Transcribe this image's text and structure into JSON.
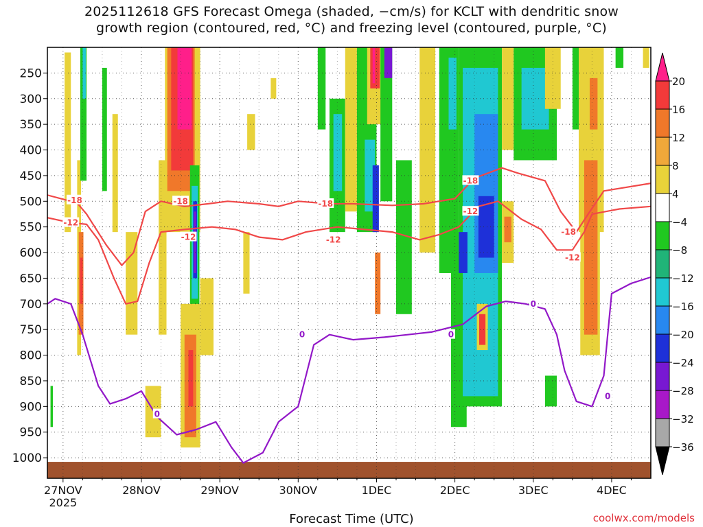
{
  "chart_data": {
    "type": "heatmap",
    "title": "2025112618 GFS Forecast Omega (shaded, −cm/s) for KCLT with dendritic snow growth region (contoured, red, °C) and freezing level (contoured, purple, °C)",
    "title_line1": "2025112618 GFS Forecast Omega (shaded, −cm/s) for KCLT with dendritic snow",
    "title_line2": "growth region (contoured, red, °C) and freezing level (contoured, purple, °C)",
    "xlabel": "Forecast Time (UTC)",
    "ylabel": "",
    "credit": "coolwx.com/models",
    "x_range_days": [
      -0.2,
      7.5
    ],
    "x_ticks": [
      {
        "day": 0,
        "label": "27NOV",
        "sub": "2025"
      },
      {
        "day": 1,
        "label": "28NOV",
        "sub": ""
      },
      {
        "day": 2,
        "label": "29NOV",
        "sub": ""
      },
      {
        "day": 3,
        "label": "30NOV",
        "sub": ""
      },
      {
        "day": 4,
        "label": "1DEC",
        "sub": ""
      },
      {
        "day": 5,
        "label": "2DEC",
        "sub": ""
      },
      {
        "day": 6,
        "label": "3DEC",
        "sub": ""
      },
      {
        "day": 7,
        "label": "4DEC",
        "sub": ""
      }
    ],
    "y_range_hpa": [
      1040,
      200
    ],
    "y_ticks": [
      250,
      300,
      350,
      400,
      450,
      500,
      550,
      600,
      650,
      700,
      750,
      800,
      850,
      900,
      950,
      1000
    ],
    "colorbar": {
      "labels": [
        "20",
        "16",
        "12",
        "8",
        "4",
        "−4",
        "−8",
        "−12",
        "−16",
        "−20",
        "−24",
        "−28",
        "−32",
        "−36"
      ],
      "colors": [
        "#ff1f8a",
        "#f23a3a",
        "#f0782a",
        "#f0a83a",
        "#e8d23a",
        "#ffffff",
        "#20c820",
        "#20b478",
        "#20c8d2",
        "#2888f0",
        "#1e30d8",
        "#7818d2",
        "#a818c8",
        "#a8a8a8",
        "#000000"
      ]
    },
    "omega_blobs": [
      {
        "x0": 0.02,
        "x1": 0.1,
        "p0": 210,
        "p1": 560,
        "cat": "yellow"
      },
      {
        "x0": 0.18,
        "x1": 0.23,
        "p0": 420,
        "p1": 800,
        "cat": "yellow"
      },
      {
        "x0": 0.2,
        "x1": 0.26,
        "p0": 560,
        "p1": 760,
        "cat": "orange"
      },
      {
        "x0": 0.22,
        "x1": 0.25,
        "p0": 610,
        "p1": 700,
        "cat": "red"
      },
      {
        "x0": -0.16,
        "x1": -0.13,
        "p0": 860,
        "p1": 940,
        "cat": "green"
      },
      {
        "x0": 0.22,
        "x1": 0.3,
        "p0": 200,
        "p1": 460,
        "cat": "green"
      },
      {
        "x0": 0.25,
        "x1": 0.29,
        "p0": 200,
        "p1": 300,
        "cat": "cyan"
      },
      {
        "x0": 0.5,
        "x1": 0.56,
        "p0": 240,
        "p1": 480,
        "cat": "green"
      },
      {
        "x0": 0.63,
        "x1": 0.7,
        "p0": 330,
        "p1": 560,
        "cat": "yellow"
      },
      {
        "x0": 0.8,
        "x1": 0.95,
        "p0": 560,
        "p1": 760,
        "cat": "yellow"
      },
      {
        "x0": 1.05,
        "x1": 1.25,
        "p0": 860,
        "p1": 960,
        "cat": "yellow"
      },
      {
        "x0": 1.22,
        "x1": 1.32,
        "p0": 420,
        "p1": 760,
        "cat": "yellow"
      },
      {
        "x0": 1.3,
        "x1": 1.75,
        "p0": 200,
        "p1": 560,
        "cat": "yellow"
      },
      {
        "x0": 1.33,
        "x1": 1.68,
        "p0": 200,
        "p1": 480,
        "cat": "orange"
      },
      {
        "x0": 1.38,
        "x1": 1.66,
        "p0": 200,
        "p1": 440,
        "cat": "red"
      },
      {
        "x0": 1.46,
        "x1": 1.64,
        "p0": 200,
        "p1": 360,
        "cat": "magenta"
      },
      {
        "x0": 1.62,
        "x1": 1.74,
        "p0": 430,
        "p1": 720,
        "cat": "green"
      },
      {
        "x0": 1.64,
        "x1": 1.72,
        "p0": 470,
        "p1": 690,
        "cat": "cyan"
      },
      {
        "x0": 1.66,
        "x1": 1.71,
        "p0": 500,
        "p1": 650,
        "cat": "blue"
      },
      {
        "x0": 1.67,
        "x1": 1.7,
        "p0": 520,
        "p1": 640,
        "cat": "purple"
      },
      {
        "x0": 1.5,
        "x1": 1.75,
        "p0": 700,
        "p1": 980,
        "cat": "yellow"
      },
      {
        "x0": 1.55,
        "x1": 1.7,
        "p0": 760,
        "p1": 960,
        "cat": "orange"
      },
      {
        "x0": 1.6,
        "x1": 1.66,
        "p0": 790,
        "p1": 900,
        "cat": "red"
      },
      {
        "x0": 1.75,
        "x1": 1.92,
        "p0": 650,
        "p1": 800,
        "cat": "yellow"
      },
      {
        "x0": 2.35,
        "x1": 2.45,
        "p0": 330,
        "p1": 400,
        "cat": "yellow"
      },
      {
        "x0": 2.3,
        "x1": 2.38,
        "p0": 560,
        "p1": 680,
        "cat": "yellow"
      },
      {
        "x0": 2.65,
        "x1": 2.72,
        "p0": 260,
        "p1": 300,
        "cat": "yellow"
      },
      {
        "x0": 3.25,
        "x1": 3.35,
        "p0": 200,
        "p1": 360,
        "cat": "green"
      },
      {
        "x0": 3.4,
        "x1": 3.6,
        "p0": 300,
        "p1": 560,
        "cat": "green"
      },
      {
        "x0": 3.45,
        "x1": 3.56,
        "p0": 330,
        "p1": 480,
        "cat": "cyan"
      },
      {
        "x0": 3.6,
        "x1": 3.75,
        "p0": 200,
        "p1": 520,
        "cat": "yellow"
      },
      {
        "x0": 3.75,
        "x1": 4.0,
        "p0": 200,
        "p1": 560,
        "cat": "green"
      },
      {
        "x0": 3.85,
        "x1": 3.98,
        "p0": 380,
        "p1": 520,
        "cat": "cyan"
      },
      {
        "x0": 3.88,
        "x1": 4.06,
        "p0": 200,
        "p1": 350,
        "cat": "yellow"
      },
      {
        "x0": 3.92,
        "x1": 4.04,
        "p0": 200,
        "p1": 280,
        "cat": "red"
      },
      {
        "x0": 3.95,
        "x1": 3.98,
        "p0": 200,
        "p1": 270,
        "cat": "magenta"
      },
      {
        "x0": 3.95,
        "x1": 4.03,
        "p0": 430,
        "p1": 560,
        "cat": "blue"
      },
      {
        "x0": 4.05,
        "x1": 4.2,
        "p0": 200,
        "p1": 500,
        "cat": "green"
      },
      {
        "x0": 4.1,
        "x1": 4.2,
        "p0": 200,
        "p1": 260,
        "cat": "purple"
      },
      {
        "x0": 3.98,
        "x1": 4.05,
        "p0": 600,
        "p1": 720,
        "cat": "orange"
      },
      {
        "x0": 4.25,
        "x1": 4.45,
        "p0": 420,
        "p1": 720,
        "cat": "green"
      },
      {
        "x0": 4.55,
        "x1": 4.75,
        "p0": 200,
        "p1": 600,
        "cat": "yellow"
      },
      {
        "x0": 4.8,
        "x1": 5.05,
        "p0": 200,
        "p1": 640,
        "cat": "green"
      },
      {
        "x0": 4.92,
        "x1": 5.02,
        "p0": 220,
        "p1": 360,
        "cat": "cyan"
      },
      {
        "x0": 4.95,
        "x1": 5.15,
        "p0": 600,
        "p1": 940,
        "cat": "green"
      },
      {
        "x0": 5.05,
        "x1": 5.6,
        "p0": 200,
        "p1": 900,
        "cat": "green"
      },
      {
        "x0": 5.1,
        "x1": 5.55,
        "p0": 240,
        "p1": 880,
        "cat": "cyan"
      },
      {
        "x0": 5.25,
        "x1": 5.55,
        "p0": 330,
        "p1": 640,
        "cat": "sky"
      },
      {
        "x0": 5.3,
        "x1": 5.5,
        "p0": 490,
        "p1": 610,
        "cat": "blue"
      },
      {
        "x0": 5.05,
        "x1": 5.16,
        "p0": 560,
        "p1": 640,
        "cat": "blue"
      },
      {
        "x0": 5.28,
        "x1": 5.42,
        "p0": 700,
        "p1": 790,
        "cat": "yellow"
      },
      {
        "x0": 5.31,
        "x1": 5.39,
        "p0": 720,
        "p1": 780,
        "cat": "red"
      },
      {
        "x0": 5.6,
        "x1": 5.75,
        "p0": 200,
        "p1": 400,
        "cat": "yellow"
      },
      {
        "x0": 5.6,
        "x1": 5.75,
        "p0": 500,
        "p1": 620,
        "cat": "yellow"
      },
      {
        "x0": 5.63,
        "x1": 5.72,
        "p0": 530,
        "p1": 580,
        "cat": "orange"
      },
      {
        "x0": 5.75,
        "x1": 6.3,
        "p0": 200,
        "p1": 420,
        "cat": "green"
      },
      {
        "x0": 5.85,
        "x1": 6.2,
        "p0": 240,
        "p1": 360,
        "cat": "cyan"
      },
      {
        "x0": 6.15,
        "x1": 6.35,
        "p0": 200,
        "p1": 320,
        "cat": "yellow"
      },
      {
        "x0": 6.15,
        "x1": 6.3,
        "p0": 840,
        "p1": 900,
        "cat": "green"
      },
      {
        "x0": 6.5,
        "x1": 6.66,
        "p0": 200,
        "p1": 360,
        "cat": "green"
      },
      {
        "x0": 6.58,
        "x1": 6.9,
        "p0": 200,
        "p1": 560,
        "cat": "yellow"
      },
      {
        "x0": 6.6,
        "x1": 6.85,
        "p0": 400,
        "p1": 800,
        "cat": "yellow"
      },
      {
        "x0": 6.65,
        "x1": 6.82,
        "p0": 420,
        "p1": 760,
        "cat": "orange"
      },
      {
        "x0": 6.72,
        "x1": 6.82,
        "p0": 260,
        "p1": 360,
        "cat": "orange"
      },
      {
        "x0": 7.05,
        "x1": 7.15,
        "p0": 200,
        "p1": 240,
        "cat": "green"
      },
      {
        "x0": 7.4,
        "x1": 7.48,
        "p0": 200,
        "p1": 240,
        "cat": "yellow"
      }
    ],
    "contours": [
      {
        "name": "-18",
        "color": "#f04848",
        "points": [
          [
            -0.2,
            488
          ],
          [
            0.05,
            498
          ],
          [
            0.15,
            498
          ],
          [
            0.3,
            525
          ],
          [
            0.55,
            585
          ],
          [
            0.75,
            625
          ],
          [
            0.9,
            600
          ],
          [
            1.05,
            520
          ],
          [
            1.25,
            500
          ],
          [
            1.55,
            510
          ],
          [
            1.85,
            505
          ],
          [
            2.1,
            500
          ],
          [
            2.5,
            505
          ],
          [
            2.75,
            510
          ],
          [
            3.0,
            500
          ],
          [
            3.4,
            505
          ],
          [
            3.7,
            505
          ],
          [
            4.2,
            508
          ],
          [
            4.6,
            505
          ],
          [
            5.0,
            495
          ],
          [
            5.25,
            455
          ],
          [
            5.6,
            435
          ],
          [
            5.8,
            445
          ],
          [
            6.15,
            460
          ],
          [
            6.35,
            520
          ],
          [
            6.55,
            560
          ],
          [
            6.7,
            525
          ],
          [
            6.9,
            480
          ],
          [
            7.1,
            475
          ],
          [
            7.5,
            465
          ]
        ]
      },
      {
        "name": "-12",
        "color": "#f04848",
        "points": [
          [
            -0.2,
            532
          ],
          [
            0.1,
            542
          ],
          [
            0.3,
            545
          ],
          [
            0.45,
            575
          ],
          [
            0.65,
            650
          ],
          [
            0.8,
            700
          ],
          [
            0.95,
            695
          ],
          [
            1.1,
            620
          ],
          [
            1.25,
            560
          ],
          [
            1.55,
            555
          ],
          [
            1.9,
            550
          ],
          [
            2.2,
            555
          ],
          [
            2.5,
            570
          ],
          [
            2.8,
            575
          ],
          [
            3.1,
            560
          ],
          [
            3.5,
            550
          ],
          [
            3.85,
            555
          ],
          [
            4.2,
            560
          ],
          [
            4.55,
            575
          ],
          [
            4.8,
            565
          ],
          [
            5.05,
            550
          ],
          [
            5.3,
            510
          ],
          [
            5.55,
            500
          ],
          [
            5.85,
            535
          ],
          [
            6.1,
            555
          ],
          [
            6.3,
            595
          ],
          [
            6.5,
            595
          ],
          [
            6.65,
            560
          ],
          [
            6.75,
            525
          ],
          [
            7.1,
            515
          ],
          [
            7.5,
            510
          ]
        ]
      },
      {
        "name": "0",
        "color": "#9218c8",
        "points": [
          [
            -0.2,
            700
          ],
          [
            -0.1,
            690
          ],
          [
            0.1,
            700
          ],
          [
            0.25,
            760
          ],
          [
            0.45,
            860
          ],
          [
            0.6,
            895
          ],
          [
            0.8,
            885
          ],
          [
            1.0,
            870
          ],
          [
            1.2,
            920
          ],
          [
            1.45,
            955
          ],
          [
            1.7,
            945
          ],
          [
            1.95,
            930
          ],
          [
            2.15,
            980
          ],
          [
            2.3,
            1010
          ],
          [
            2.55,
            990
          ],
          [
            2.75,
            930
          ],
          [
            3.0,
            900
          ],
          [
            3.1,
            840
          ],
          [
            3.2,
            780
          ],
          [
            3.4,
            760
          ],
          [
            3.7,
            770
          ],
          [
            4.1,
            765
          ],
          [
            4.4,
            760
          ],
          [
            4.7,
            755
          ],
          [
            5.1,
            740
          ],
          [
            5.4,
            705
          ],
          [
            5.65,
            695
          ],
          [
            5.9,
            700
          ],
          [
            6.15,
            710
          ],
          [
            6.3,
            760
          ],
          [
            6.4,
            830
          ],
          [
            6.55,
            890
          ],
          [
            6.75,
            900
          ],
          [
            6.9,
            840
          ],
          [
            7.0,
            680
          ],
          [
            7.25,
            660
          ],
          [
            7.5,
            648
          ]
        ]
      }
    ],
    "contour_labels": [
      {
        "text": "-18",
        "day": 0.15,
        "p": 498
      },
      {
        "text": "-18",
        "day": 1.5,
        "p": 500
      },
      {
        "text": "-18",
        "day": 3.35,
        "p": 505
      },
      {
        "text": "-18",
        "day": 5.2,
        "p": 460
      },
      {
        "text": "-18",
        "day": 6.45,
        "p": 560
      },
      {
        "text": "-12",
        "day": 0.1,
        "p": 542
      },
      {
        "text": "-12",
        "day": 1.6,
        "p": 570
      },
      {
        "text": "-12",
        "day": 3.45,
        "p": 575
      },
      {
        "text": "-12",
        "day": 5.2,
        "p": 520
      },
      {
        "text": "-12",
        "day": 6.5,
        "p": 610
      },
      {
        "text": "0",
        "day": 1.2,
        "p": 915
      },
      {
        "text": "0",
        "day": 3.05,
        "p": 760
      },
      {
        "text": "0",
        "day": 4.95,
        "p": 760
      },
      {
        "text": "0",
        "day": 6.0,
        "p": 700
      },
      {
        "text": "0",
        "day": 6.95,
        "p": 880
      }
    ],
    "ground_level_hpa": 1008
  }
}
